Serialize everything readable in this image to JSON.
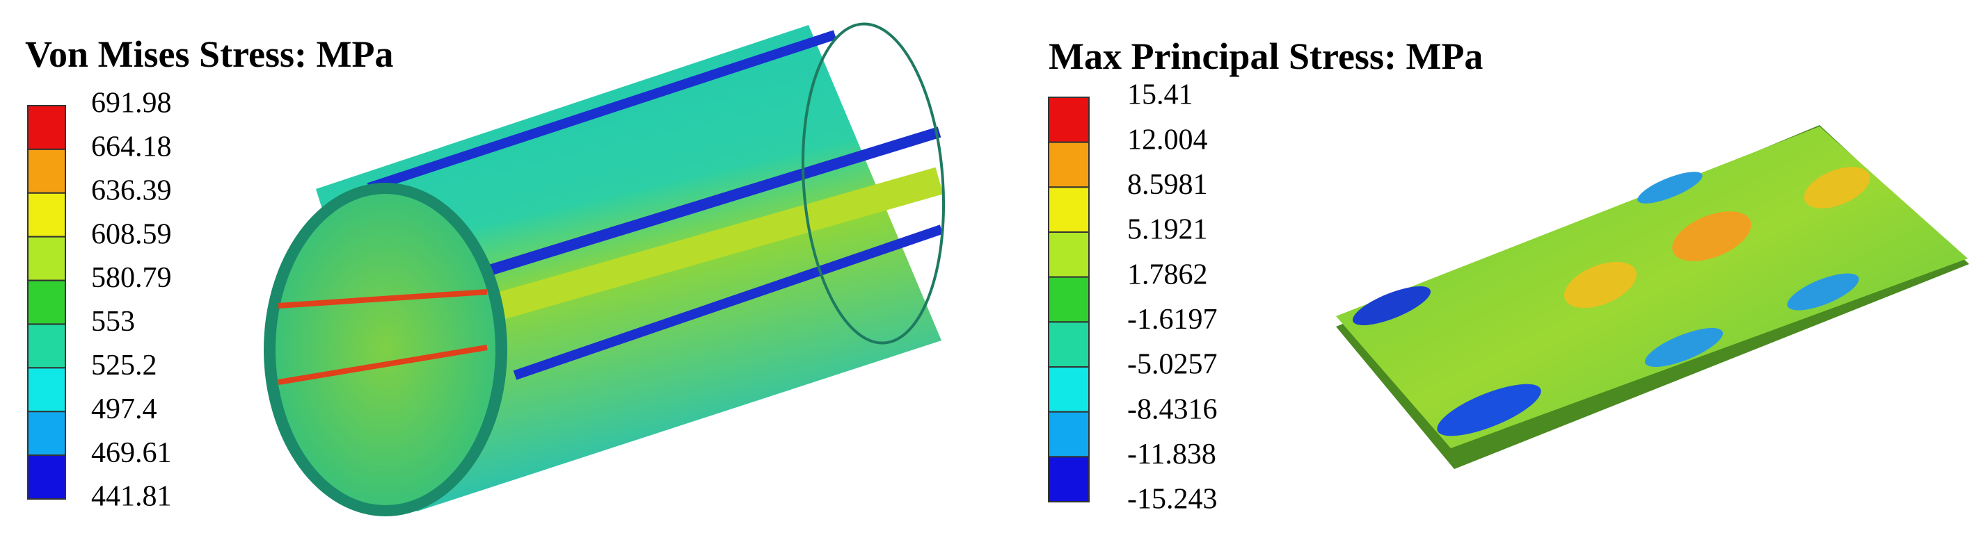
{
  "panels": [
    {
      "title": "Von Mises Stress: MPa",
      "legend": [
        "691.98",
        "664.18",
        "636.39",
        "608.59",
        "580.79",
        "553",
        "525.2",
        "497.4",
        "469.61",
        "441.81"
      ]
    },
    {
      "title": "Max Principal Stress: MPa",
      "legend": [
        "15.41",
        "12.004",
        "8.5981",
        "5.1921",
        "1.7862",
        "-1.6197",
        "-5.0257",
        "-8.4316",
        "-11.838",
        "-15.243"
      ]
    }
  ]
}
